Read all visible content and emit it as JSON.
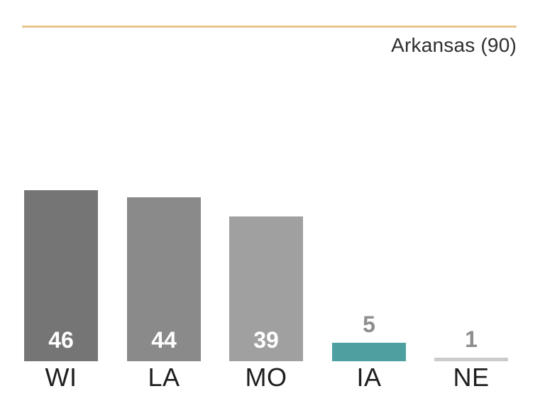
{
  "header": {
    "title": "Arkansas (90)",
    "rule_color": "#e7c48e",
    "title_color": "#2e2e2e"
  },
  "chart_data": {
    "type": "bar",
    "title": "Arkansas (90)",
    "categories": [
      "WI",
      "LA",
      "MO",
      "IA",
      "NE"
    ],
    "values": [
      46,
      44,
      39,
      5,
      1
    ],
    "bar_colors": [
      "#757575",
      "#8a8a8a",
      "#a0a0a0",
      "#4d9fa0",
      "#cbcbcb"
    ],
    "highlight_color": "#4d9fa0",
    "value_label_inside_color": "#ffffff",
    "value_label_outside_color": "#8e8e8e",
    "category_label_color": "#1e1e1e",
    "xlabel": "",
    "ylabel": "",
    "ylim": [
      0,
      46
    ],
    "grid": false,
    "legend": false,
    "orientation": "vertical",
    "value_labels_shown": true
  }
}
